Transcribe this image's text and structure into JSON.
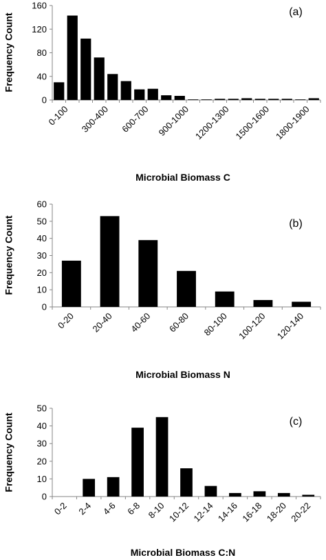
{
  "chart_data": [
    {
      "type": "bar",
      "panel_label": "(a)",
      "xlabel": "Microbial Biomass C",
      "ylabel": "Frequency Count",
      "ylim": [
        0,
        160
      ],
      "yticks": [
        "0",
        "40",
        "80",
        "120",
        "160"
      ],
      "categories": [
        "0-100",
        "100-200",
        "200-300",
        "300-400",
        "400-500",
        "500-600",
        "600-700",
        "700-800",
        "800-900",
        "900-1000",
        "1000-1100",
        "1100-1200",
        "1200-1300",
        "1300-1400",
        "1400-1500",
        "1500-1600",
        "1600-1700",
        "1700-1800",
        "1800-1900",
        "1900-2000"
      ],
      "shown_tick_labels": [
        "0-100",
        "300-400",
        "600-700",
        "900-1000",
        "1200-1300",
        "1500-1600",
        "1800-1900"
      ],
      "values": [
        30,
        143,
        104,
        72,
        44,
        32,
        18,
        19,
        8,
        7,
        1,
        1,
        2,
        2,
        3,
        2,
        2,
        2,
        1,
        3
      ],
      "grid": false,
      "legend": false
    },
    {
      "type": "bar",
      "panel_label": "(b)",
      "xlabel": "Microbial Biomass N",
      "ylabel": "Frequency Count",
      "ylim": [
        0,
        60
      ],
      "yticks": [
        "0",
        "10",
        "20",
        "30",
        "40",
        "50",
        "60"
      ],
      "categories": [
        "0-20",
        "20-40",
        "40-60",
        "60-80",
        "80-100",
        "100-120",
        "120-140"
      ],
      "shown_tick_labels": [
        "0-20",
        "20-40",
        "40-60",
        "60-80",
        "80-100",
        "100-120",
        "120-140"
      ],
      "values": [
        27,
        53,
        39,
        21,
        9,
        4,
        3
      ],
      "grid": false,
      "legend": false
    },
    {
      "type": "bar",
      "panel_label": "(c)",
      "xlabel": "Microbial Biomass C:N",
      "ylabel": "Frequency Count",
      "ylim": [
        0,
        50
      ],
      "yticks": [
        "0",
        "10",
        "20",
        "30",
        "40",
        "50"
      ],
      "categories": [
        "0-2",
        "2-4",
        "4-6",
        "6-8",
        "8-10",
        "10-12",
        "12-14",
        "14-16",
        "16-18",
        "18-20",
        "20-22"
      ],
      "shown_tick_labels": [
        "0-2",
        "2-4",
        "4-6",
        "6-8",
        "8-10",
        "10-12",
        "12-14",
        "14-16",
        "16-18",
        "18-20",
        "20-22"
      ],
      "values": [
        0,
        10,
        11,
        39,
        45,
        16,
        6,
        2,
        3,
        2,
        1
      ],
      "grid": false,
      "legend": false
    }
  ],
  "colors": {
    "bar": "#000000",
    "axis": "#868686",
    "text": "#000000"
  }
}
